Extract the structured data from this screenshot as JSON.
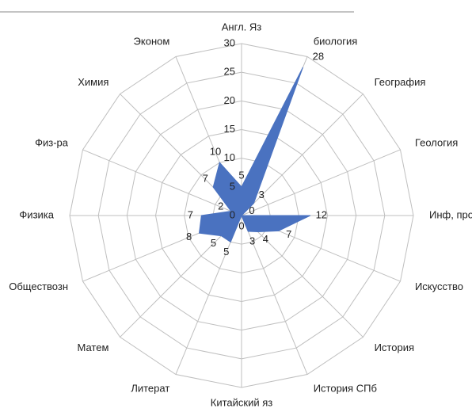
{
  "chart_data": {
    "type": "radar",
    "categories": [
      "Англ. Яз",
      "биология",
      "География",
      "Геология",
      "Инф, прогр",
      "Искусство",
      "История",
      "История СПб",
      "Китайский яз",
      "Литерат",
      "Матем",
      "Обществозн",
      "Физика",
      "Физ-ра",
      "Химия",
      "Эконом"
    ],
    "values": [
      5,
      28,
      3,
      0,
      12,
      7,
      4,
      3,
      0,
      5,
      5,
      8,
      7,
      2,
      7,
      10
    ],
    "color": "#4a72c0",
    "ylim": [
      0,
      30
    ],
    "yticks": [
      0,
      5,
      10,
      15,
      20,
      25,
      30
    ],
    "grid": true
  }
}
